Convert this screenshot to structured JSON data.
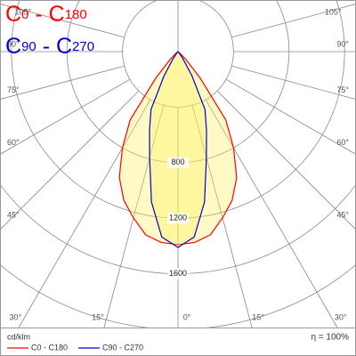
{
  "chart_data": {
    "type": "polar",
    "unit_label": "cd/klm",
    "efficiency_label": "η = 100%",
    "theta": [
      0,
      5,
      10,
      15,
      20,
      25,
      30,
      35,
      40,
      45,
      50,
      55,
      60,
      65,
      70,
      75,
      80,
      85,
      90
    ],
    "series": [
      {
        "name": "C0 - C180",
        "color": "#ff0000",
        "values": [
          1390,
          1380,
          1340,
          1240,
          1140,
          1000,
          800,
          600,
          250,
          80,
          20,
          5,
          0,
          0,
          0,
          0,
          0,
          0,
          0
        ]
      },
      {
        "name": "C90 - C270",
        "color": "#0000cc",
        "values": [
          1410,
          1340,
          1100,
          790,
          600,
          460,
          200,
          60,
          10,
          0,
          0,
          0,
          0,
          0,
          0,
          0,
          0,
          0,
          0
        ]
      }
    ],
    "rlim": [
      0,
      2000
    ],
    "rgrid": [
      400,
      800,
      1200,
      1600,
      2000
    ],
    "rticks": [
      800,
      1200,
      1600
    ],
    "thetaticks": [
      {
        "value": 0,
        "label": "0°"
      },
      {
        "value": 15,
        "label": "15°"
      },
      {
        "value": 30,
        "label": "30°"
      },
      {
        "value": 45,
        "label": "45°"
      },
      {
        "value": 60,
        "label": "60°"
      },
      {
        "value": 75,
        "label": "75°"
      },
      {
        "value": 90,
        "label": "90°"
      },
      {
        "value": 105,
        "label": "105°"
      }
    ]
  }
}
